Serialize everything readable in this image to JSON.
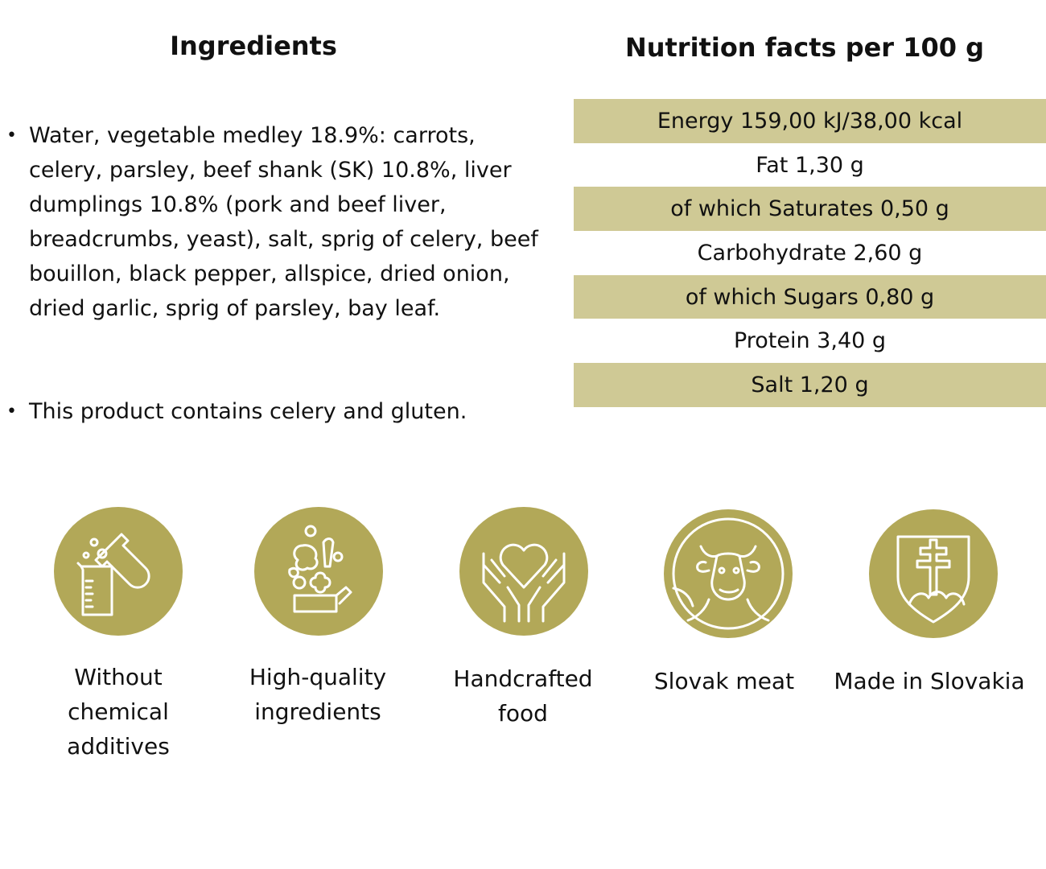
{
  "ingredients": {
    "title": "Ingredients",
    "items": [
      "Water, vegetable medley 18.9%: carrots, celery, parsley, beef shank (SK) 10.8%, liver dumplings 10.8% (pork and beef liver, breadcrumbs, yeast), salt, sprig of celery, beef bouillon, black pepper, allspice, dried onion, dried garlic, sprig of parsley, bay leaf.",
      "This product contains celery and gluten."
    ]
  },
  "nutrition": {
    "title": "Nutrition facts per 100 g",
    "rows": [
      "Energy 159,00 kJ/38,00 kcal",
      "Fat 1,30 g",
      "of which Saturates 0,50 g",
      "Carbohydrate 2,60 g",
      "of which Sugars 0,80 g",
      "Protein 3,40 g",
      "Salt 1,20 g"
    ]
  },
  "badges": [
    {
      "label": "Without chemical additives",
      "icon": "chemistry-flask-icon"
    },
    {
      "label": "High-quality ingredients",
      "icon": "vegetables-icon"
    },
    {
      "label": "Handcrafted food",
      "icon": "heart-hands-icon"
    },
    {
      "label": "Slovak meat",
      "icon": "cow-icon"
    },
    {
      "label": "Made in Slovakia",
      "icon": "slovak-coat-of-arms-icon"
    }
  ],
  "colors": {
    "accent": "#b2a858",
    "row_shade": "#cfc995",
    "text": "#111111"
  }
}
